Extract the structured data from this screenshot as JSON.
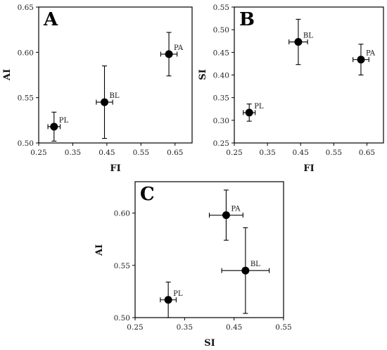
{
  "chart_data": [
    {
      "type": "scatter",
      "panel": "A",
      "xlabel": "FI",
      "ylabel": "AI",
      "xlim": [
        0.25,
        0.7
      ],
      "ylim": [
        0.5,
        0.65
      ],
      "xticks": [
        "0.25",
        "0.35",
        "0.45",
        "0.55",
        "0.65"
      ],
      "yticks": [
        "0.50",
        "0.55",
        "0.60",
        "0.65"
      ],
      "points": [
        {
          "label": "PL",
          "x": 0.295,
          "y": 0.518,
          "xerr": 0.018,
          "yerr": 0.016
        },
        {
          "label": "BL",
          "x": 0.443,
          "y": 0.545,
          "xerr": 0.024,
          "yerr": 0.04
        },
        {
          "label": "PA",
          "x": 0.632,
          "y": 0.598,
          "xerr": 0.024,
          "yerr": 0.024
        }
      ]
    },
    {
      "type": "scatter",
      "panel": "B",
      "xlabel": "FI",
      "ylabel": "SI",
      "xlim": [
        0.25,
        0.7
      ],
      "ylim": [
        0.25,
        0.55
      ],
      "xticks": [
        "0.25",
        "0.35",
        "0.45",
        "0.55",
        "0.65"
      ],
      "yticks": [
        "0.25",
        "0.30",
        "0.35",
        "0.40",
        "0.45",
        "0.50",
        "0.55"
      ],
      "points": [
        {
          "label": "PL",
          "x": 0.295,
          "y": 0.317,
          "xerr": 0.018,
          "yerr": 0.019
        },
        {
          "label": "BL",
          "x": 0.443,
          "y": 0.473,
          "xerr": 0.028,
          "yerr": 0.05
        },
        {
          "label": "PA",
          "x": 0.632,
          "y": 0.434,
          "xerr": 0.024,
          "yerr": 0.034
        }
      ]
    },
    {
      "type": "scatter",
      "panel": "C",
      "xlabel": "SI",
      "ylabel": "AI",
      "xlim": [
        0.25,
        0.55
      ],
      "ylim": [
        0.5,
        0.63
      ],
      "xticks": [
        "0.25",
        "0.35",
        "0.45",
        "0.55"
      ],
      "yticks": [
        "0.50",
        "0.55",
        "0.60"
      ],
      "points": [
        {
          "label": "PL",
          "x": 0.317,
          "y": 0.517,
          "xerr": 0.016,
          "yerr": 0.017
        },
        {
          "label": "PA",
          "x": 0.434,
          "y": 0.598,
          "xerr": 0.034,
          "yerr": 0.024
        },
        {
          "label": "BL",
          "x": 0.473,
          "y": 0.545,
          "xerr": 0.048,
          "yerr": 0.041
        }
      ]
    }
  ]
}
